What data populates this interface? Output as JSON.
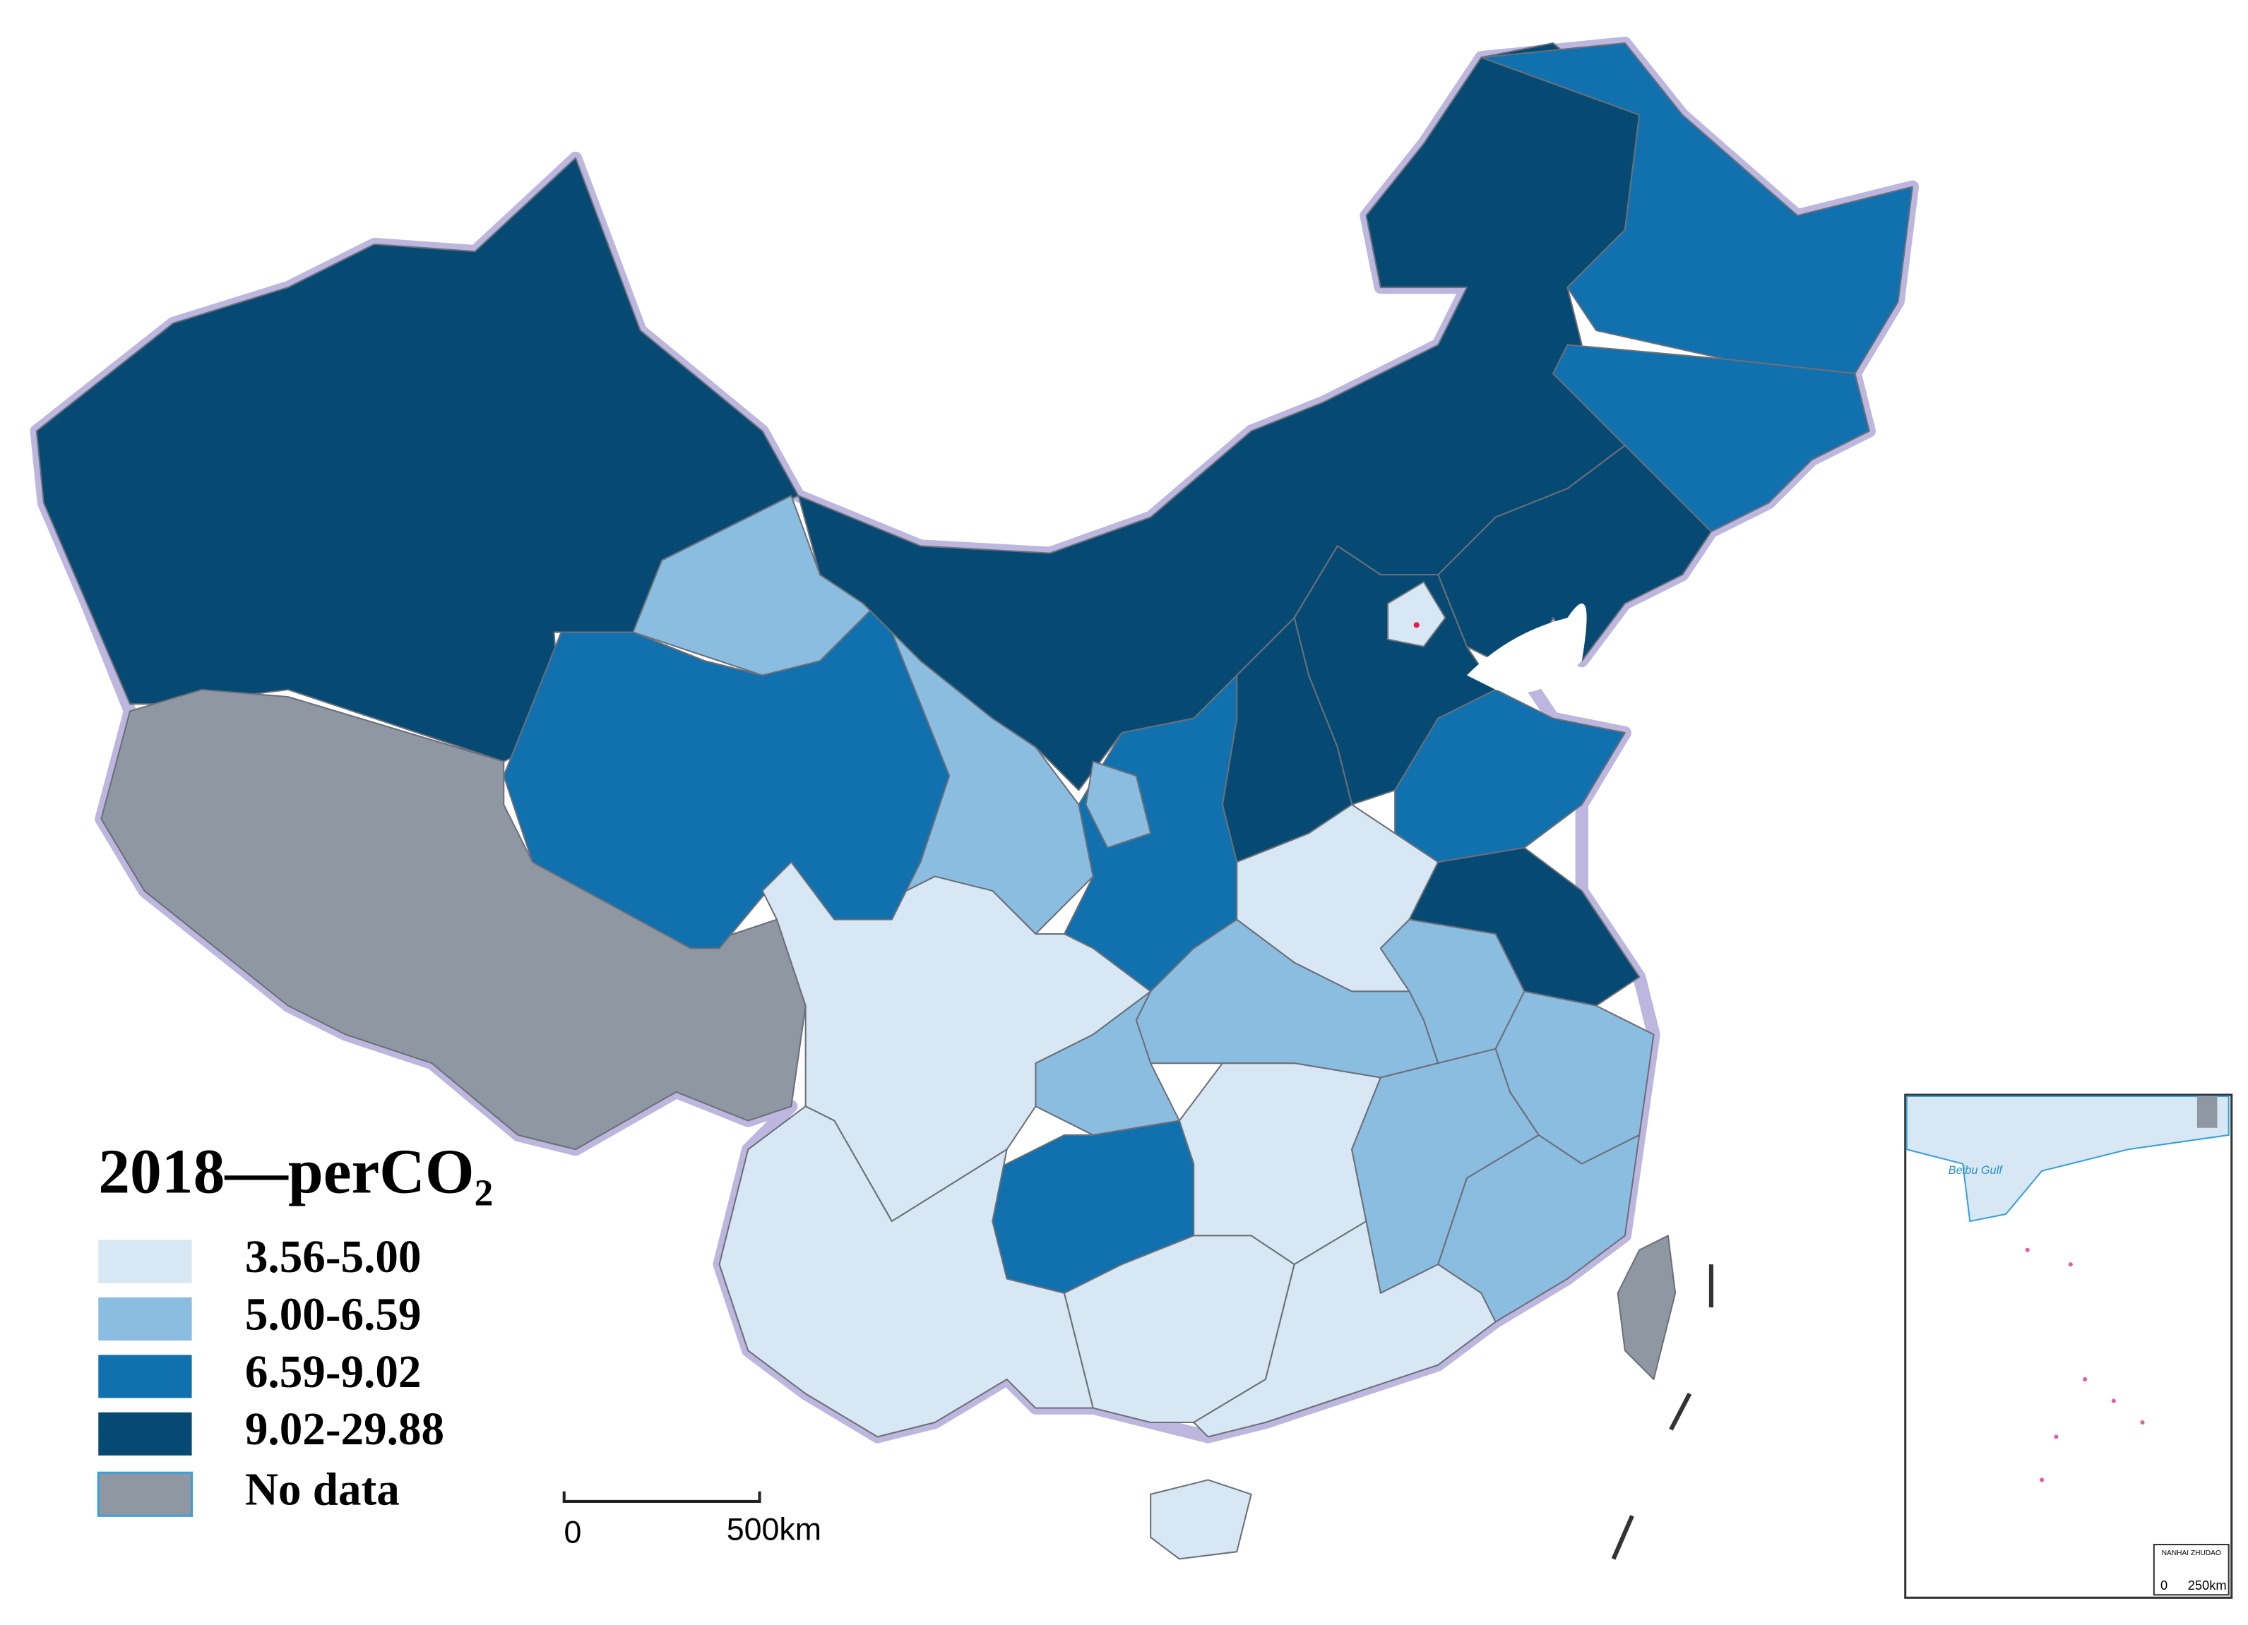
{
  "map": {
    "legend": {
      "title": "2018—perCO₂",
      "items": [
        {
          "label": "3.56-5.00",
          "color": "#d7e7f3"
        },
        {
          "label": "5.00-6.59",
          "color": "#8abde0"
        },
        {
          "label": "6.59-9.02",
          "color": "#1170ae"
        },
        {
          "label": "9.02-29.88",
          "color": "#064a73"
        },
        {
          "label": "No data",
          "color": "#8f97a3"
        }
      ]
    },
    "scale_bar": {
      "start": "0",
      "end": "500km"
    },
    "inset": {
      "sea_label": "Beibu Gulf",
      "title": "NANHAI ZHUDAO",
      "scale_start": "0",
      "scale_end": "250km"
    }
  }
}
